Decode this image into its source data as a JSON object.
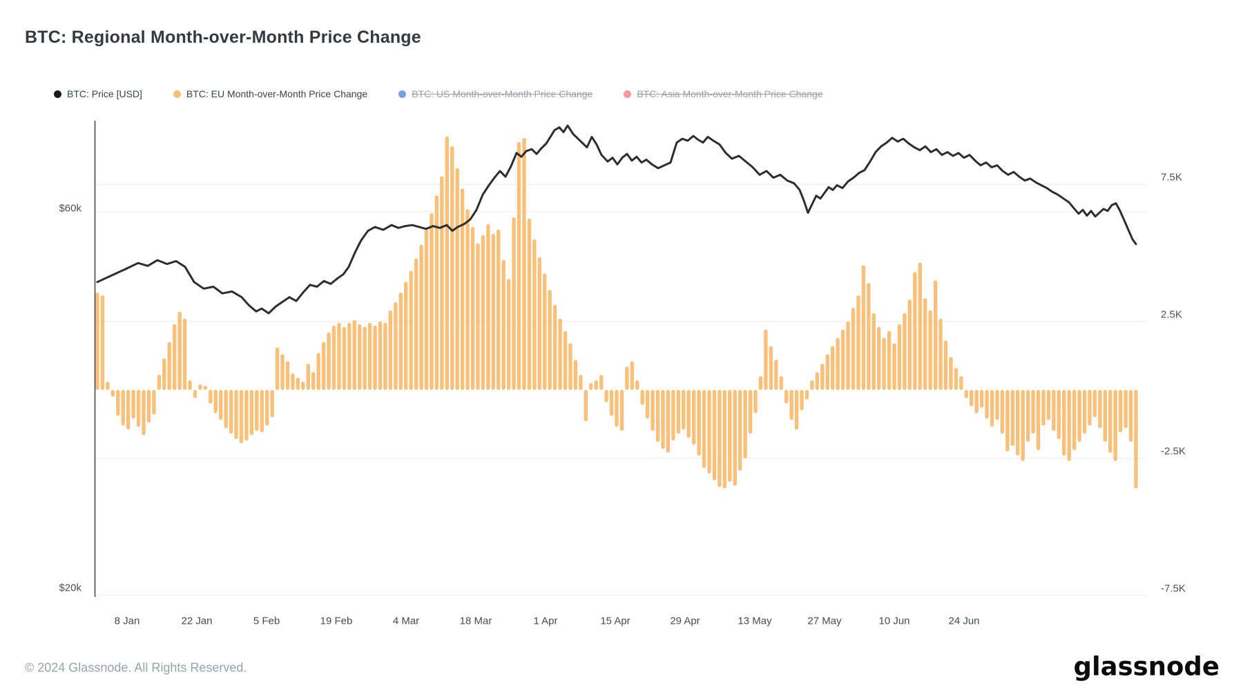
{
  "title": "BTC: Regional Month-over-Month Price Change",
  "legend": [
    {
      "label": "BTC: Price [USD]",
      "color": "#17181a",
      "disabled": false
    },
    {
      "label": "BTC: EU Month-over-Month Price Change",
      "color": "#f8bd71",
      "disabled": false
    },
    {
      "label": "BTC: US Month-over-Month Price Change",
      "color": "#7d9cea",
      "disabled": true
    },
    {
      "label": "BTC: Asia Month-over-Month Price Change",
      "color": "#f59a99",
      "disabled": true
    }
  ],
  "footer": {
    "copyright": "© 2024 Glassnode. All Rights Reserved.",
    "brand": "glassnode"
  },
  "chart_data": {
    "type": "mixed",
    "title": "BTC: Regional Month-over-Month Price Change",
    "grid": "horizontal-only",
    "legend_position": "top",
    "left_axis": {
      "unit": "USD",
      "ticks": [
        {
          "label": "$60k",
          "value": 60
        },
        {
          "label": "$20k",
          "value": 20
        }
      ],
      "range_k": [
        19.4,
        69.6
      ]
    },
    "right_axis": {
      "unit": "USD (thousands) MoM change",
      "ticks": [
        {
          "label": "7.5K",
          "value": 7.5
        },
        {
          "label": "2.5K",
          "value": 2.5
        },
        {
          "label": "-2.5K",
          "value": -2.5
        },
        {
          "label": "-7.5K",
          "value": -7.5
        }
      ],
      "range_k": [
        -7.55,
        9.85
      ]
    },
    "x_axis": {
      "labels": [
        "8 Jan",
        "22 Jan",
        "5 Feb",
        "19 Feb",
        "4 Mar",
        "18 Mar",
        "1 Apr",
        "15 Apr",
        "29 Apr",
        "13 May",
        "27 May",
        "10 Jun",
        "24 Jun"
      ]
    },
    "series": [
      {
        "name": "BTC: Price [USD]",
        "type": "line",
        "axis": "left",
        "color": "#2d2d2d",
        "units": "thousand USD",
        "points": [
          [
            141,
            52.6
          ],
          [
            162,
            53.3
          ],
          [
            183,
            54.0
          ],
          [
            200,
            54.6
          ],
          [
            214,
            54.3
          ],
          [
            228,
            54.9
          ],
          [
            242,
            54.5
          ],
          [
            255,
            54.8
          ],
          [
            268,
            54.2
          ],
          [
            281,
            52.6
          ],
          [
            295,
            51.9
          ],
          [
            309,
            52.1
          ],
          [
            322,
            51.4
          ],
          [
            336,
            51.6
          ],
          [
            350,
            51.0
          ],
          [
            361,
            50.1
          ],
          [
            371,
            49.5
          ],
          [
            379,
            49.8
          ],
          [
            389,
            49.3
          ],
          [
            399,
            50.0
          ],
          [
            409,
            50.5
          ],
          [
            419,
            51.0
          ],
          [
            429,
            50.6
          ],
          [
            439,
            51.5
          ],
          [
            449,
            52.3
          ],
          [
            459,
            52.1
          ],
          [
            469,
            52.7
          ],
          [
            479,
            52.4
          ],
          [
            489,
            53.0
          ],
          [
            497,
            53.4
          ],
          [
            505,
            54.2
          ],
          [
            514,
            55.7
          ],
          [
            523,
            57.0
          ],
          [
            533,
            58.0
          ],
          [
            543,
            58.4
          ],
          [
            555,
            58.1
          ],
          [
            567,
            58.6
          ],
          [
            577,
            58.3
          ],
          [
            587,
            58.5
          ],
          [
            597,
            58.6
          ],
          [
            607,
            58.4
          ],
          [
            617,
            58.2
          ],
          [
            627,
            58.5
          ],
          [
            637,
            58.3
          ],
          [
            647,
            58.6
          ],
          [
            655,
            58.0
          ],
          [
            663,
            58.4
          ],
          [
            672,
            58.7
          ],
          [
            681,
            59.2
          ],
          [
            690,
            60.2
          ],
          [
            699,
            61.8
          ],
          [
            708,
            62.8
          ],
          [
            716,
            63.6
          ],
          [
            724,
            64.3
          ],
          [
            732,
            63.7
          ],
          [
            740,
            64.8
          ],
          [
            748,
            66.2
          ],
          [
            755,
            65.8
          ],
          [
            762,
            66.4
          ],
          [
            770,
            66.6
          ],
          [
            777,
            66.1
          ],
          [
            784,
            66.7
          ],
          [
            791,
            67.2
          ],
          [
            797,
            67.9
          ],
          [
            803,
            68.6
          ],
          [
            810,
            68.9
          ],
          [
            816,
            68.4
          ],
          [
            822,
            69.1
          ],
          [
            830,
            68.2
          ],
          [
            840,
            67.5
          ],
          [
            850,
            66.8
          ],
          [
            857,
            67.9
          ],
          [
            864,
            67.1
          ],
          [
            871,
            66.0
          ],
          [
            880,
            65.3
          ],
          [
            887,
            65.7
          ],
          [
            894,
            65.0
          ],
          [
            901,
            65.7
          ],
          [
            908,
            66.1
          ],
          [
            915,
            65.4
          ],
          [
            922,
            65.8
          ],
          [
            929,
            65.2
          ],
          [
            936,
            65.5
          ],
          [
            944,
            65.0
          ],
          [
            953,
            64.6
          ],
          [
            962,
            64.9
          ],
          [
            971,
            65.2
          ],
          [
            980,
            67.3
          ],
          [
            988,
            67.7
          ],
          [
            996,
            67.5
          ],
          [
            1004,
            68.0
          ],
          [
            1011,
            67.6
          ],
          [
            1018,
            67.3
          ],
          [
            1025,
            67.9
          ],
          [
            1033,
            67.5
          ],
          [
            1042,
            67.1
          ],
          [
            1051,
            66.2
          ],
          [
            1060,
            65.6
          ],
          [
            1070,
            65.9
          ],
          [
            1080,
            65.3
          ],
          [
            1090,
            64.7
          ],
          [
            1100,
            63.9
          ],
          [
            1110,
            64.3
          ],
          [
            1120,
            63.6
          ],
          [
            1130,
            63.9
          ],
          [
            1140,
            63.3
          ],
          [
            1150,
            63.0
          ],
          [
            1158,
            62.3
          ],
          [
            1164,
            61.2
          ],
          [
            1170,
            59.9
          ],
          [
            1176,
            60.8
          ],
          [
            1182,
            61.7
          ],
          [
            1188,
            61.4
          ],
          [
            1194,
            62.0
          ],
          [
            1200,
            62.6
          ],
          [
            1206,
            62.3
          ],
          [
            1212,
            62.8
          ],
          [
            1220,
            62.5
          ],
          [
            1228,
            63.2
          ],
          [
            1236,
            63.6
          ],
          [
            1244,
            64.1
          ],
          [
            1252,
            64.4
          ],
          [
            1260,
            65.3
          ],
          [
            1268,
            66.3
          ],
          [
            1276,
            66.9
          ],
          [
            1284,
            67.3
          ],
          [
            1292,
            67.8
          ],
          [
            1300,
            67.4
          ],
          [
            1308,
            67.7
          ],
          [
            1316,
            67.2
          ],
          [
            1324,
            66.8
          ],
          [
            1332,
            66.5
          ],
          [
            1340,
            66.9
          ],
          [
            1348,
            66.3
          ],
          [
            1356,
            66.6
          ],
          [
            1364,
            66.0
          ],
          [
            1372,
            66.3
          ],
          [
            1380,
            65.9
          ],
          [
            1388,
            66.2
          ],
          [
            1396,
            65.7
          ],
          [
            1404,
            66.0
          ],
          [
            1412,
            65.4
          ],
          [
            1420,
            64.9
          ],
          [
            1428,
            65.2
          ],
          [
            1436,
            64.7
          ],
          [
            1444,
            64.9
          ],
          [
            1452,
            64.3
          ],
          [
            1460,
            63.9
          ],
          [
            1468,
            64.2
          ],
          [
            1476,
            63.7
          ],
          [
            1484,
            63.3
          ],
          [
            1492,
            63.5
          ],
          [
            1500,
            63.1
          ],
          [
            1508,
            62.8
          ],
          [
            1516,
            62.5
          ],
          [
            1524,
            62.1
          ],
          [
            1532,
            61.8
          ],
          [
            1540,
            61.4
          ],
          [
            1548,
            61.0
          ],
          [
            1556,
            60.3
          ],
          [
            1562,
            59.8
          ],
          [
            1568,
            60.2
          ],
          [
            1574,
            59.6
          ],
          [
            1580,
            60.1
          ],
          [
            1586,
            59.5
          ],
          [
            1592,
            59.9
          ],
          [
            1598,
            60.3
          ],
          [
            1604,
            60.1
          ],
          [
            1610,
            60.7
          ],
          [
            1616,
            60.9
          ],
          [
            1622,
            60.1
          ],
          [
            1628,
            59.1
          ],
          [
            1634,
            58.1
          ],
          [
            1640,
            57.1
          ],
          [
            1645,
            56.6
          ]
        ]
      },
      {
        "name": "BTC: EU Month-over-Month Price Change",
        "type": "bar",
        "axis": "right",
        "color": "#f8c079",
        "units": "thousand USD",
        "values": [
          3.55,
          3.45,
          0.3,
          -0.25,
          -0.95,
          -1.3,
          -1.45,
          -1.05,
          -1.35,
          -1.65,
          -1.2,
          -0.9,
          0.55,
          1.15,
          1.75,
          2.4,
          2.85,
          2.6,
          0.35,
          -0.3,
          0.2,
          0.15,
          -0.5,
          -0.85,
          -1.1,
          -1.4,
          -1.6,
          -1.8,
          -1.95,
          -1.85,
          -1.65,
          -1.5,
          -1.55,
          -1.3,
          -1.0,
          1.55,
          1.3,
          1.05,
          0.6,
          0.45,
          0.3,
          0.95,
          0.65,
          1.35,
          1.75,
          2.1,
          2.35,
          2.45,
          2.3,
          2.45,
          2.55,
          2.4,
          2.3,
          2.45,
          2.35,
          2.5,
          2.45,
          2.9,
          3.2,
          3.55,
          3.95,
          4.35,
          4.8,
          5.3,
          5.85,
          6.45,
          7.1,
          7.8,
          9.25,
          8.9,
          8.1,
          7.35,
          6.6,
          5.95,
          5.35,
          5.65,
          6.05,
          5.7,
          5.85,
          4.75,
          4.05,
          6.3,
          9.05,
          9.2,
          6.25,
          5.5,
          4.85,
          4.25,
          3.65,
          3.1,
          2.6,
          2.15,
          1.7,
          1.1,
          0.55,
          -1.15,
          0.25,
          0.35,
          0.55,
          -0.45,
          -0.95,
          -1.35,
          -1.5,
          0.85,
          1.05,
          0.35,
          -0.55,
          -1.05,
          -1.5,
          -1.9,
          -2.15,
          -2.3,
          -1.85,
          -1.6,
          -1.45,
          -1.75,
          -2.0,
          -2.4,
          -2.85,
          -3.05,
          -3.3,
          -3.55,
          -3.6,
          -3.35,
          -3.5,
          -2.95,
          -2.5,
          -1.6,
          -0.85,
          0.5,
          2.2,
          1.6,
          1.1,
          0.5,
          -0.5,
          -1.1,
          -1.45,
          -0.75,
          -0.35,
          0.35,
          0.65,
          0.95,
          1.3,
          1.6,
          1.9,
          2.2,
          2.5,
          3.0,
          3.45,
          4.55,
          3.9,
          2.8,
          2.3,
          1.9,
          2.15,
          1.7,
          2.4,
          2.8,
          3.3,
          4.3,
          4.65,
          3.35,
          2.9,
          4.0,
          2.6,
          1.8,
          1.2,
          0.8,
          0.5,
          -0.3,
          -0.6,
          -0.85,
          -0.65,
          -1.05,
          -1.35,
          -1.1,
          -1.6,
          -2.25,
          -2.05,
          -2.4,
          -2.6,
          -1.9,
          -1.6,
          -2.2,
          -1.3,
          -1.1,
          -1.5,
          -1.8,
          -2.4,
          -2.6,
          -2.2,
          -1.9,
          -1.6,
          -1.3,
          -1.0,
          -1.4,
          -1.9,
          -2.3,
          -2.6,
          -1.55,
          -1.4,
          -1.9,
          -3.6
        ]
      }
    ]
  }
}
